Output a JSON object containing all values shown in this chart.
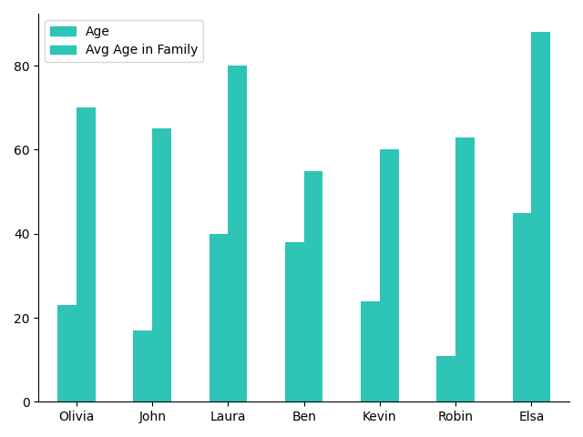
{
  "categories": [
    "Olivia",
    "John",
    "Laura",
    "Ben",
    "Kevin",
    "Robin",
    "Elsa"
  ],
  "age": [
    23,
    17,
    40,
    38,
    24,
    11,
    45
  ],
  "avg_age_in_family": [
    70,
    65,
    80,
    55,
    60,
    63,
    88
  ],
  "bar_color": "#2ec4b6",
  "legend_labels": [
    "Age",
    "Avg Age in Family"
  ],
  "yticks": [
    0,
    20,
    40,
    60,
    80
  ],
  "background_color": "#ffffff"
}
